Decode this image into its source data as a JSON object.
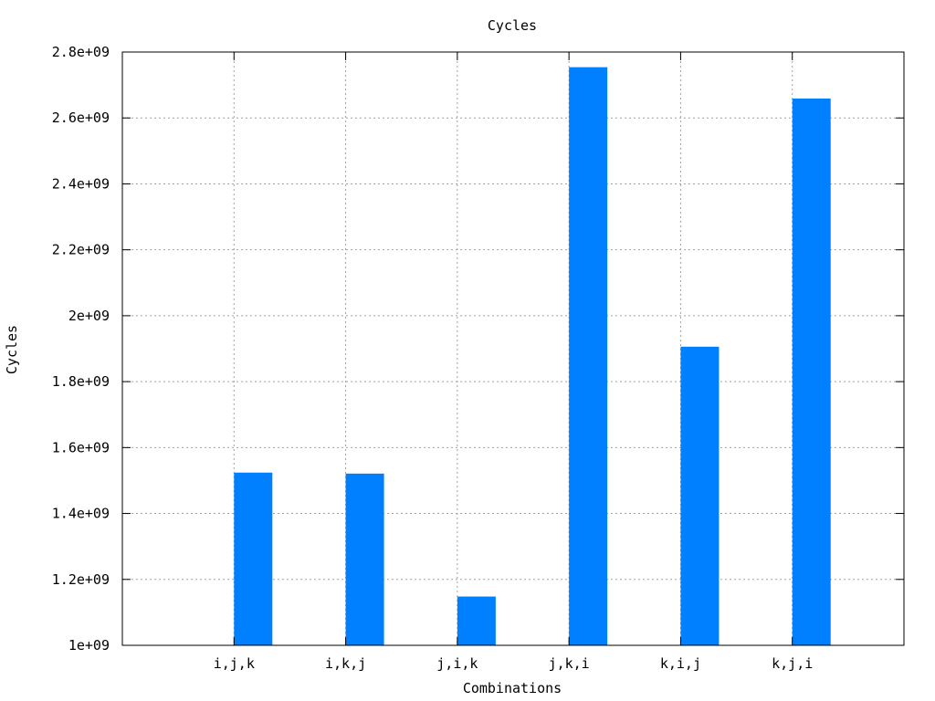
{
  "chart_data": {
    "type": "bar",
    "title": "Cycles",
    "xlabel": "Combinations",
    "ylabel": "Cycles",
    "categories": [
      "i,j,k",
      "i,k,j",
      "j,i,k",
      "j,k,i",
      "k,i,j",
      "k,j,i"
    ],
    "values": [
      1524000000,
      1521000000,
      1148000000,
      2754000000,
      1906000000,
      2659000000
    ],
    "ylim": [
      1000000000,
      2800000000
    ],
    "yticks": [
      1000000000,
      1200000000,
      1400000000,
      1600000000,
      1800000000,
      2000000000,
      2200000000,
      2400000000,
      2600000000,
      2800000000
    ],
    "ytick_labels": [
      "1e+09",
      "1.2e+09",
      "1.4e+09",
      "1.6e+09",
      "1.8e+09",
      "2e+09",
      "2.2e+09",
      "2.4e+09",
      "2.6e+09",
      "2.8e+09"
    ],
    "xlim": [
      0,
      7
    ],
    "x_positions": [
      1,
      2,
      3,
      4,
      5,
      6
    ],
    "bar_color": "#0080ff",
    "grid": true,
    "legend": "none"
  }
}
